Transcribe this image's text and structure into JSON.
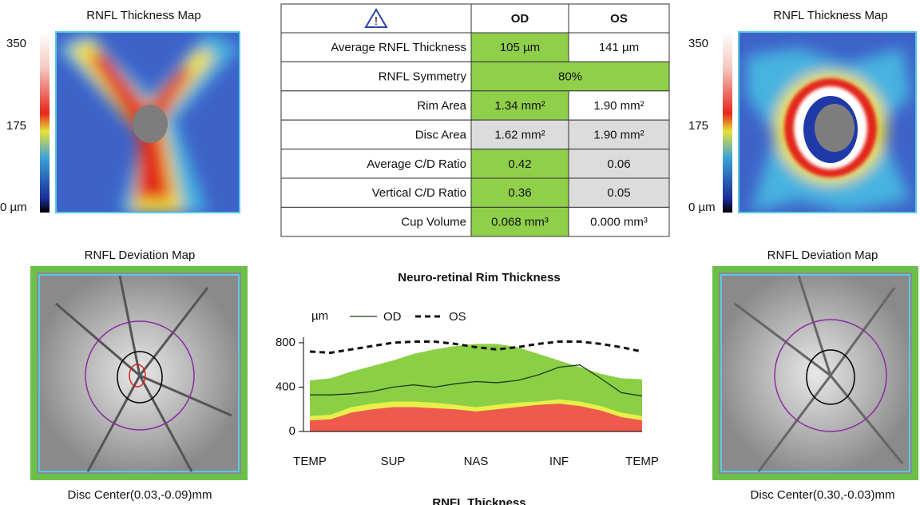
{
  "left": {
    "map_title": "RNFL Thickness Map",
    "scale": [
      "350",
      "175",
      "0 µm"
    ],
    "deviation_title": "RNFL Deviation Map",
    "disc_center": "Disc Center(0.03,-0.09)mm"
  },
  "right": {
    "map_title": "RNFL Thickness Map",
    "scale": [
      "350",
      "175",
      "0 µm"
    ],
    "deviation_title": "RNFL Deviation Map",
    "disc_center": "Disc Center(0.30,-0.03)mm"
  },
  "table": {
    "header": [
      "OD",
      "OS"
    ],
    "rows": [
      [
        "Average RNFL Thickness",
        "105 µm",
        "141 µm"
      ],
      [
        "RNFL Symmetry",
        "80%"
      ],
      [
        "Rim Area",
        "1.34 mm²",
        "1.90 mm²"
      ],
      [
        "Disc Area",
        "1.62 mm²",
        "1.90 mm²"
      ],
      [
        "Average C/D Ratio",
        "0.42",
        "0.06"
      ],
      [
        "Vertical C/D Ratio",
        "0.36",
        "0.05"
      ],
      [
        "Cup Volume",
        "0.068 mm³",
        "0.000 mm³"
      ]
    ]
  },
  "chart_data": {
    "type": "line",
    "title": "Neuro-retinal Rim Thickness",
    "y_label": "µm",
    "categories": [
      "TEMP",
      null,
      null,
      null,
      "SUP",
      null,
      null,
      null,
      "NAS",
      null,
      null,
      null,
      "INF",
      null,
      null,
      null,
      "TEMP"
    ],
    "series": [
      {
        "name": "OD",
        "color": "#1a3a1a",
        "dash": false,
        "values": [
          330,
          330,
          340,
          360,
          400,
          420,
          400,
          430,
          450,
          440,
          460,
          510,
          580,
          600,
          480,
          350,
          320
        ]
      },
      {
        "name": "OS",
        "color": "#111111",
        "dash": true,
        "values": [
          720,
          710,
          740,
          770,
          800,
          810,
          810,
          790,
          760,
          740,
          760,
          790,
          810,
          810,
          790,
          760,
          720
        ]
      }
    ],
    "bands": [
      {
        "color": "#8bcf45",
        "values": [
          460,
          480,
          540,
          590,
          640,
          700,
          740,
          770,
          790,
          790,
          760,
          700,
          640,
          580,
          520,
          480,
          470
        ]
      },
      {
        "color": "#e8ef4a",
        "values": [
          140,
          150,
          220,
          250,
          270,
          270,
          260,
          240,
          220,
          240,
          260,
          270,
          290,
          270,
          230,
          170,
          140
        ]
      },
      {
        "color": "#ee5a4e",
        "values": [
          100,
          110,
          170,
          200,
          220,
          220,
          210,
          200,
          180,
          200,
          220,
          240,
          250,
          230,
          190,
          130,
          100
        ]
      }
    ],
    "ylim": [
      0,
      850
    ],
    "yticks": [
      0,
      400,
      800
    ]
  },
  "footer": "RNFL Thickness"
}
